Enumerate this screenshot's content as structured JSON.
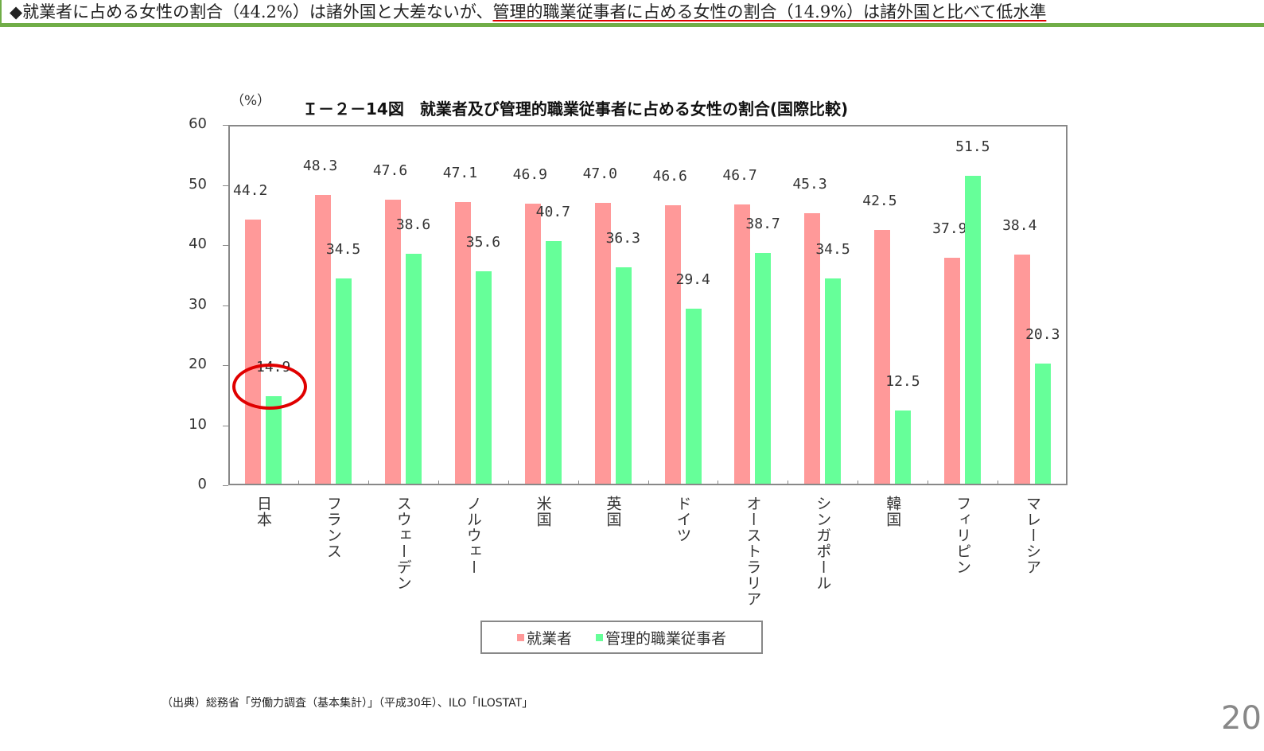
{
  "headline": {
    "bullet": "◆",
    "text_part1": "就業者に占める女性の割合（44.2%）は諸外国と大差ないが、",
    "text_part2_underlined": "管理的職業従事者に占める女性の割合（14.9%）は諸外国と比べて低水準",
    "accent_color": "#70ad47",
    "underline_color": "#e00000"
  },
  "chart_data": {
    "type": "bar",
    "title": "Ｉ－２－14図　就業者及び管理的職業従事者に占める女性の割合(国際比較)",
    "ylabel": "（%）",
    "xlabel": "",
    "ylim": [
      0,
      60
    ],
    "yticks": [
      0,
      10,
      20,
      30,
      40,
      50,
      60
    ],
    "grid": false,
    "legend_position": "bottom",
    "categories": [
      "日本",
      "フランス",
      "スウェーデン",
      "ノルウェー",
      "米国",
      "英国",
      "ドイツ",
      "オーストラリア",
      "シンガポール",
      "韓国",
      "フィリピン",
      "マレーシア"
    ],
    "series": [
      {
        "name": "就業者",
        "color": "#ff9999",
        "values": [
          44.2,
          48.3,
          47.6,
          47.1,
          46.9,
          47.0,
          46.6,
          46.7,
          45.3,
          42.5,
          37.9,
          38.4
        ]
      },
      {
        "name": "管理的職業従事者",
        "color": "#66ff99",
        "values": [
          14.9,
          34.5,
          38.6,
          35.6,
          40.7,
          36.3,
          29.4,
          38.7,
          34.5,
          12.5,
          51.5,
          20.3
        ]
      }
    ],
    "value_labels": {
      "就業者": [
        "44.2",
        "48.3",
        "47.6",
        "47.1",
        "46.9",
        "47.0",
        "46.6",
        "46.7",
        "45.3",
        "42.5",
        "37.9",
        "38.4"
      ],
      "管理的職業従事者": [
        "14.9",
        "34.5",
        "38.6",
        "35.6",
        "40.7",
        "36.3",
        "29.4",
        "38.7",
        "34.5",
        "12.5",
        "51.5",
        "20.3"
      ]
    },
    "annotations": [
      {
        "type": "circle",
        "target": "日本 管理的職業従事者 14.9",
        "color": "#e00000"
      }
    ]
  },
  "legend": {
    "items": [
      {
        "label": "就業者",
        "color": "#ff9999"
      },
      {
        "label": "管理的職業従事者",
        "color": "#66ff99"
      }
    ]
  },
  "source": "（出典）総務省「労働力調査（基本集計）」（平成30年）、ILO「ILOSTAT」",
  "page_number": "20"
}
